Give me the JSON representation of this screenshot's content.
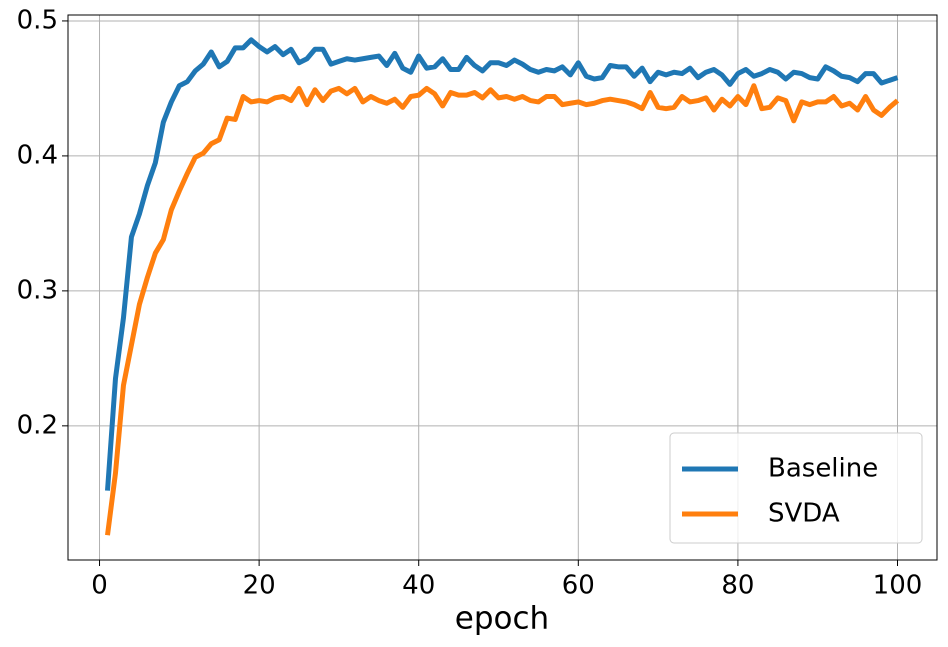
{
  "chart_data": {
    "type": "line",
    "xlabel": "epoch",
    "x": [
      1,
      2,
      3,
      4,
      5,
      6,
      7,
      8,
      9,
      10,
      11,
      12,
      13,
      14,
      15,
      16,
      17,
      18,
      19,
      20,
      21,
      22,
      23,
      24,
      25,
      26,
      27,
      28,
      29,
      30,
      31,
      32,
      33,
      34,
      35,
      36,
      37,
      38,
      39,
      40,
      41,
      42,
      43,
      44,
      45,
      46,
      47,
      48,
      49,
      50,
      51,
      52,
      53,
      54,
      55,
      56,
      57,
      58,
      59,
      60,
      61,
      62,
      63,
      64,
      65,
      66,
      67,
      68,
      69,
      70,
      71,
      72,
      73,
      74,
      75,
      76,
      77,
      78,
      79,
      80,
      81,
      82,
      83,
      84,
      85,
      86,
      87,
      88,
      89,
      90,
      91,
      92,
      93,
      94,
      95,
      96,
      97,
      98,
      99,
      100
    ],
    "series": [
      {
        "name": "Baseline",
        "color": "#1f77b4",
        "values": [
          0.152,
          0.235,
          0.28,
          0.34,
          0.357,
          0.378,
          0.395,
          0.425,
          0.44,
          0.452,
          0.455,
          0.463,
          0.468,
          0.477,
          0.466,
          0.47,
          0.48,
          0.48,
          0.486,
          0.481,
          0.477,
          0.481,
          0.475,
          0.479,
          0.469,
          0.472,
          0.479,
          0.479,
          0.468,
          0.47,
          0.472,
          0.471,
          0.472,
          0.473,
          0.474,
          0.467,
          0.476,
          0.465,
          0.462,
          0.474,
          0.465,
          0.466,
          0.472,
          0.464,
          0.464,
          0.473,
          0.467,
          0.463,
          0.469,
          0.469,
          0.467,
          0.471,
          0.468,
          0.464,
          0.462,
          0.464,
          0.463,
          0.466,
          0.46,
          0.469,
          0.459,
          0.457,
          0.458,
          0.467,
          0.466,
          0.466,
          0.459,
          0.465,
          0.455,
          0.462,
          0.46,
          0.462,
          0.461,
          0.465,
          0.458,
          0.462,
          0.464,
          0.46,
          0.453,
          0.461,
          0.464,
          0.459,
          0.461,
          0.464,
          0.462,
          0.457,
          0.462,
          0.461,
          0.458,
          0.457,
          0.466,
          0.463,
          0.459,
          0.458,
          0.455,
          0.461,
          0.461,
          0.454,
          0.456,
          0.458
        ]
      },
      {
        "name": "SVDA",
        "color": "#ff7f0e",
        "values": [
          0.119,
          0.165,
          0.23,
          0.26,
          0.29,
          0.31,
          0.328,
          0.338,
          0.36,
          0.374,
          0.387,
          0.399,
          0.402,
          0.409,
          0.412,
          0.428,
          0.427,
          0.444,
          0.44,
          0.441,
          0.44,
          0.443,
          0.444,
          0.441,
          0.45,
          0.438,
          0.449,
          0.441,
          0.448,
          0.45,
          0.446,
          0.45,
          0.44,
          0.444,
          0.441,
          0.439,
          0.442,
          0.436,
          0.444,
          0.445,
          0.45,
          0.446,
          0.437,
          0.447,
          0.445,
          0.445,
          0.447,
          0.443,
          0.449,
          0.443,
          0.444,
          0.442,
          0.444,
          0.441,
          0.44,
          0.444,
          0.444,
          0.438,
          0.439,
          0.44,
          0.438,
          0.439,
          0.441,
          0.442,
          0.441,
          0.44,
          0.438,
          0.435,
          0.447,
          0.436,
          0.435,
          0.436,
          0.444,
          0.44,
          0.441,
          0.443,
          0.434,
          0.442,
          0.437,
          0.444,
          0.438,
          0.452,
          0.435,
          0.436,
          0.443,
          0.441,
          0.426,
          0.44,
          0.438,
          0.44,
          0.44,
          0.444,
          0.437,
          0.439,
          0.434,
          0.444,
          0.434,
          0.43,
          0.436,
          0.441
        ]
      }
    ],
    "xlim": [
      -3.95,
      104.95
    ],
    "xticks": [
      0,
      20,
      40,
      60,
      80,
      100
    ],
    "ylim": [
      0.1006,
      0.5044
    ],
    "yticks": [
      0.2,
      0.3,
      0.4,
      0.5
    ],
    "grid": true,
    "legend": "lower right"
  }
}
